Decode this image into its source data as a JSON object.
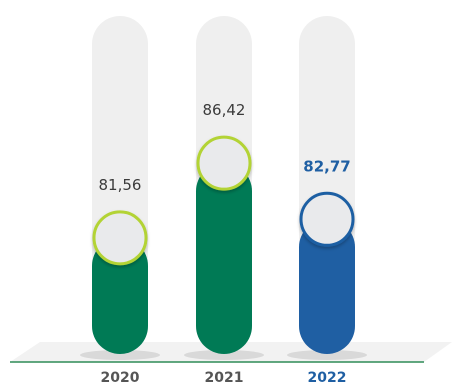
{
  "chart_data": {
    "type": "bar",
    "categories": [
      "2020",
      "2021",
      "2022"
    ],
    "values": [
      81.56,
      86.42,
      82.77
    ],
    "value_labels": [
      "81,56",
      "86,42",
      "82,77"
    ],
    "highlight_index": 2,
    "title": "",
    "xlabel": "",
    "ylabel": "",
    "ylim": [
      74,
      96
    ],
    "grid": false,
    "colors": {
      "track": "#efefef",
      "bar": "#007a55",
      "bar_highlight": "#1f5fa3",
      "knob_ring": "#b3d335",
      "knob_ring_highlight": "#1f5fa3",
      "knob_fill": "#e9eaec",
      "label": "#3b3b3b",
      "label_highlight": "#1f5fa3",
      "baseline": "#2e8b57"
    }
  }
}
